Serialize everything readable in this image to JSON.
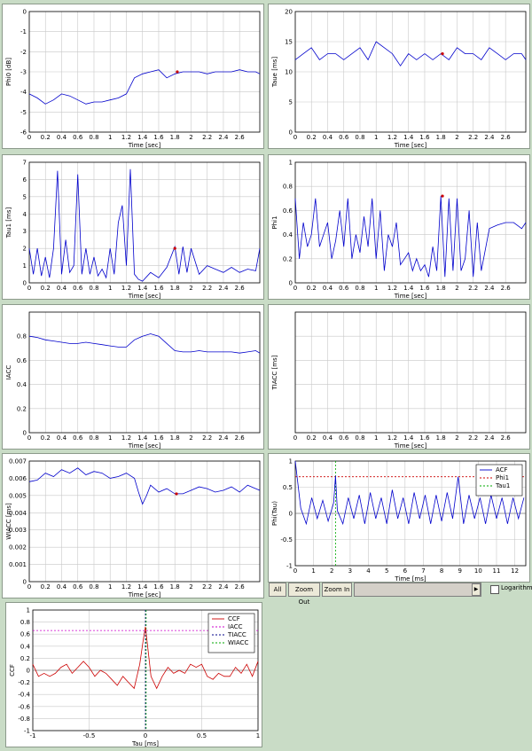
{
  "toolbar": {
    "all_label": "All",
    "zoom_out_label": "Zoom Out",
    "zoom_in_label": "Zoom In",
    "scroll_right_glyph": "▶",
    "logarithm_label": "Logarithm",
    "logarithm_checked": false
  },
  "chart_data": [
    {
      "id": "phi0",
      "type": "line",
      "xlabel": "Time [sec]",
      "ylabel": "Phi0 [dB]",
      "xlim": [
        0,
        2.85
      ],
      "ylim": [
        -6,
        0
      ],
      "xticks": [
        0,
        0.2,
        0.4,
        0.6,
        0.8,
        1,
        1.2,
        1.4,
        1.6,
        1.8,
        2,
        2.2,
        2.4,
        2.6
      ],
      "xtick_labels": [
        "0",
        "0.2",
        "0.4",
        "0.6",
        "0.8",
        "1",
        "1.2",
        "1.4",
        "1.6",
        "1.8",
        "2",
        "2.2",
        "2.4",
        "2.6"
      ],
      "yticks": [
        -6,
        -5,
        -4,
        -3,
        -2,
        -1,
        0
      ],
      "ytick_labels": [
        "-6",
        "-5",
        "-4",
        "-3",
        "-2",
        "-1",
        "0"
      ],
      "grid": true,
      "color": "#0000cc",
      "x": [
        0,
        0.1,
        0.2,
        0.3,
        0.4,
        0.5,
        0.6,
        0.7,
        0.8,
        0.9,
        1.0,
        1.1,
        1.2,
        1.3,
        1.4,
        1.5,
        1.6,
        1.7,
        1.8,
        1.9,
        2.0,
        2.1,
        2.2,
        2.3,
        2.4,
        2.5,
        2.6,
        2.7,
        2.8,
        2.85
      ],
      "y": [
        -4.1,
        -4.3,
        -4.6,
        -4.4,
        -4.1,
        -4.2,
        -4.4,
        -4.6,
        -4.5,
        -4.5,
        -4.4,
        -4.3,
        -4.1,
        -3.3,
        -3.1,
        -3.0,
        -2.9,
        -3.3,
        -3.1,
        -3.0,
        -3.0,
        -3.0,
        -3.1,
        -3.0,
        -3.0,
        -3.0,
        -2.9,
        -3.0,
        -3.0,
        -3.1
      ],
      "markers": [
        {
          "x": 1.83,
          "y": -3.0
        }
      ]
    },
    {
      "id": "taue",
      "type": "line",
      "xlabel": "Time [sec]",
      "ylabel": "Taue [ms]",
      "xlim": [
        0,
        2.85
      ],
      "ylim": [
        0,
        20
      ],
      "xticks": [
        0,
        0.2,
        0.4,
        0.6,
        0.8,
        1,
        1.2,
        1.4,
        1.6,
        1.8,
        2,
        2.2,
        2.4,
        2.6
      ],
      "xtick_labels": [
        "0",
        "0.2",
        "0.4",
        "0.6",
        "0.8",
        "1",
        "1.2",
        "1.4",
        "1.6",
        "1.8",
        "2",
        "2.2",
        "2.4",
        "2.6"
      ],
      "yticks": [
        0,
        5,
        10,
        15,
        20
      ],
      "ytick_labels": [
        "0",
        "5",
        "10",
        "15",
        "20"
      ],
      "grid": true,
      "color": "#0000cc",
      "x": [
        0,
        0.1,
        0.2,
        0.3,
        0.4,
        0.5,
        0.6,
        0.7,
        0.8,
        0.9,
        1.0,
        1.1,
        1.2,
        1.3,
        1.4,
        1.5,
        1.6,
        1.7,
        1.8,
        1.9,
        2.0,
        2.1,
        2.2,
        2.3,
        2.4,
        2.5,
        2.6,
        2.7,
        2.8,
        2.85
      ],
      "y": [
        12,
        13,
        14,
        12,
        13,
        13,
        12,
        13,
        14,
        12,
        15,
        14,
        13,
        11,
        13,
        12,
        13,
        12,
        13,
        12,
        14,
        13,
        13,
        12,
        14,
        13,
        12,
        13,
        13,
        12
      ],
      "markers": [
        {
          "x": 1.82,
          "y": 13.0
        }
      ]
    },
    {
      "id": "tau1",
      "type": "line",
      "xlabel": "Time [sec]",
      "ylabel": "Tau1 [ms]",
      "xlim": [
        0,
        2.85
      ],
      "ylim": [
        0,
        7
      ],
      "xticks": [
        0,
        0.2,
        0.4,
        0.6,
        0.8,
        1,
        1.2,
        1.4,
        1.6,
        1.8,
        2,
        2.2,
        2.4,
        2.6
      ],
      "xtick_labels": [
        "0",
        "0.2",
        "0.4",
        "0.6",
        "0.8",
        "1",
        "1.2",
        "1.4",
        "1.6",
        "1.8",
        "2",
        "2.2",
        "2.4",
        "2.6"
      ],
      "yticks": [
        0,
        1,
        2,
        3,
        4,
        5,
        6,
        7
      ],
      "ytick_labels": [
        "0",
        "1",
        "2",
        "3",
        "4",
        "5",
        "6",
        "7"
      ],
      "grid": true,
      "color": "#0000cc",
      "x": [
        0,
        0.05,
        0.1,
        0.15,
        0.2,
        0.25,
        0.3,
        0.35,
        0.4,
        0.45,
        0.5,
        0.55,
        0.6,
        0.65,
        0.7,
        0.75,
        0.8,
        0.85,
        0.9,
        0.95,
        1.0,
        1.05,
        1.1,
        1.15,
        1.2,
        1.25,
        1.3,
        1.35,
        1.4,
        1.5,
        1.6,
        1.7,
        1.8,
        1.85,
        1.9,
        1.95,
        2.0,
        2.1,
        2.2,
        2.3,
        2.4,
        2.5,
        2.6,
        2.7,
        2.8,
        2.85
      ],
      "y": [
        2,
        0.5,
        2,
        0.4,
        1.5,
        0.3,
        2,
        6.5,
        0.5,
        2.5,
        0.6,
        1,
        6.3,
        0.5,
        2,
        0.5,
        1.5,
        0.4,
        0.8,
        0.3,
        2,
        0.5,
        3.5,
        4.5,
        1,
        6.6,
        0.5,
        0.2,
        0.1,
        0.6,
        0.3,
        0.9,
        2.1,
        0.5,
        2.1,
        0.6,
        2.0,
        0.5,
        1.0,
        0.8,
        0.6,
        0.9,
        0.6,
        0.8,
        0.7,
        2.0
      ],
      "markers": [
        {
          "x": 1.8,
          "y": 2.0
        }
      ]
    },
    {
      "id": "phi1",
      "type": "line",
      "xlabel": "Time [sec]",
      "ylabel": "Phi1",
      "xlim": [
        0,
        2.85
      ],
      "ylim": [
        0,
        1
      ],
      "xticks": [
        0,
        0.2,
        0.4,
        0.6,
        0.8,
        1,
        1.2,
        1.4,
        1.6,
        1.8,
        2,
        2.2,
        2.4,
        2.6
      ],
      "xtick_labels": [
        "0",
        "0.2",
        "0.4",
        "0.6",
        "0.8",
        "1",
        "1.2",
        "1.4",
        "1.6",
        "1.8",
        "2",
        "2.2",
        "2.4",
        "2.6"
      ],
      "yticks": [
        0,
        0.2,
        0.4,
        0.6,
        0.8,
        1
      ],
      "ytick_labels": [
        "0",
        "0.2",
        "0.4",
        "0.6",
        "0.8",
        "1"
      ],
      "grid": true,
      "color": "#0000cc",
      "x": [
        0,
        0.05,
        0.1,
        0.15,
        0.2,
        0.25,
        0.3,
        0.35,
        0.4,
        0.45,
        0.5,
        0.55,
        0.6,
        0.65,
        0.7,
        0.75,
        0.8,
        0.85,
        0.9,
        0.95,
        1.0,
        1.05,
        1.1,
        1.15,
        1.2,
        1.25,
        1.3,
        1.35,
        1.4,
        1.45,
        1.5,
        1.55,
        1.6,
        1.65,
        1.7,
        1.75,
        1.8,
        1.85,
        1.9,
        1.95,
        2.0,
        2.05,
        2.1,
        2.15,
        2.2,
        2.25,
        2.3,
        2.4,
        2.5,
        2.6,
        2.7,
        2.8,
        2.85
      ],
      "y": [
        0.7,
        0.2,
        0.5,
        0.3,
        0.4,
        0.7,
        0.3,
        0.4,
        0.5,
        0.2,
        0.35,
        0.6,
        0.3,
        0.7,
        0.2,
        0.4,
        0.25,
        0.55,
        0.3,
        0.7,
        0.2,
        0.6,
        0.1,
        0.4,
        0.3,
        0.5,
        0.15,
        0.2,
        0.25,
        0.1,
        0.2,
        0.1,
        0.15,
        0.05,
        0.3,
        0.1,
        0.72,
        0.05,
        0.7,
        0.1,
        0.7,
        0.1,
        0.2,
        0.6,
        0.05,
        0.5,
        0.1,
        0.45,
        0.48,
        0.5,
        0.5,
        0.45,
        0.5
      ],
      "markers": [
        {
          "x": 1.82,
          "y": 0.72
        }
      ]
    },
    {
      "id": "iacc",
      "type": "line",
      "xlabel": "Time [sec]",
      "ylabel": "IACC",
      "xlim": [
        0,
        2.85
      ],
      "ylim": [
        0,
        1
      ],
      "xticks": [
        0,
        0.2,
        0.4,
        0.6,
        0.8,
        1,
        1.2,
        1.4,
        1.6,
        1.8,
        2,
        2.2,
        2.4,
        2.6
      ],
      "xtick_labels": [
        "0",
        "0.2",
        "0.4",
        "0.6",
        "0.8",
        "1",
        "1.2",
        "1.4",
        "1.6",
        "1.8",
        "2",
        "2.2",
        "2.4",
        "2.6"
      ],
      "yticks": [
        0,
        0.2,
        0.4,
        0.6,
        0.8
      ],
      "ytick_labels": [
        "0",
        "0.2",
        "0.4",
        "0.6",
        "0.8"
      ],
      "grid": true,
      "color": "#0000cc",
      "x": [
        0,
        0.1,
        0.2,
        0.3,
        0.4,
        0.5,
        0.6,
        0.7,
        0.8,
        0.9,
        1.0,
        1.1,
        1.2,
        1.3,
        1.4,
        1.5,
        1.6,
        1.7,
        1.8,
        1.9,
        2.0,
        2.1,
        2.2,
        2.3,
        2.4,
        2.5,
        2.6,
        2.7,
        2.8,
        2.85
      ],
      "y": [
        0.8,
        0.79,
        0.77,
        0.76,
        0.75,
        0.74,
        0.74,
        0.75,
        0.74,
        0.73,
        0.72,
        0.71,
        0.71,
        0.77,
        0.8,
        0.82,
        0.8,
        0.74,
        0.68,
        0.67,
        0.67,
        0.68,
        0.67,
        0.67,
        0.67,
        0.67,
        0.66,
        0.67,
        0.68,
        0.66
      ],
      "markers": []
    },
    {
      "id": "tiacc",
      "type": "line",
      "xlabel": "Time [sec]",
      "ylabel": "TIACC [ms]",
      "xlim": [
        0,
        2.85
      ],
      "ylim": [
        0,
        1
      ],
      "xticks": [
        0,
        0.2,
        0.4,
        0.6,
        0.8,
        1,
        1.2,
        1.4,
        1.6,
        1.8,
        2,
        2.2,
        2.4,
        2.6
      ],
      "xtick_labels": [
        "0",
        "0.2",
        "0.4",
        "0.6",
        "0.8",
        "1",
        "1.2",
        "1.4",
        "1.6",
        "1.8",
        "2",
        "2.2",
        "2.4",
        "2.6"
      ],
      "yticks": [],
      "ytick_labels": [],
      "grid": true,
      "color": "#0000cc",
      "x": [],
      "y": [],
      "markers": []
    },
    {
      "id": "wiacc",
      "type": "line",
      "xlabel": "Time [sec]",
      "ylabel": "WIACC [ms]",
      "xlim": [
        0,
        2.85
      ],
      "ylim": [
        0,
        0.007
      ],
      "xticks": [
        0,
        0.2,
        0.4,
        0.6,
        0.8,
        1,
        1.2,
        1.4,
        1.6,
        1.8,
        2,
        2.2,
        2.4,
        2.6
      ],
      "xtick_labels": [
        "0",
        "0.2",
        "0.4",
        "0.6",
        "0.8",
        "1",
        "1.2",
        "1.4",
        "1.6",
        "1.8",
        "2",
        "2.2",
        "2.4",
        "2.6"
      ],
      "yticks": [
        0,
        0.001,
        0.002,
        0.003,
        0.004,
        0.005,
        0.006,
        0.007
      ],
      "ytick_labels": [
        "0",
        "0.001",
        "0.002",
        "0.003",
        "0.004",
        "0.005",
        "0.006",
        "0.007"
      ],
      "grid": true,
      "color": "#0000cc",
      "x": [
        0,
        0.1,
        0.2,
        0.3,
        0.4,
        0.5,
        0.6,
        0.7,
        0.8,
        0.9,
        1.0,
        1.1,
        1.2,
        1.3,
        1.35,
        1.4,
        1.45,
        1.5,
        1.6,
        1.7,
        1.8,
        1.9,
        2.0,
        2.1,
        2.2,
        2.3,
        2.4,
        2.5,
        2.6,
        2.7,
        2.8,
        2.85
      ],
      "y": [
        0.0058,
        0.0059,
        0.0063,
        0.0061,
        0.0065,
        0.0063,
        0.0066,
        0.0062,
        0.0064,
        0.0063,
        0.006,
        0.0061,
        0.0063,
        0.006,
        0.0052,
        0.0045,
        0.005,
        0.0056,
        0.0052,
        0.0054,
        0.0051,
        0.0051,
        0.0053,
        0.0055,
        0.0054,
        0.0052,
        0.0053,
        0.0055,
        0.0052,
        0.0056,
        0.0054,
        0.0053
      ],
      "markers": [
        {
          "x": 1.82,
          "y": 0.0051
        }
      ]
    },
    {
      "id": "acf",
      "type": "line",
      "xlabel": "Time [ms]",
      "ylabel": "Phi(Tau)",
      "xlim": [
        0,
        12.6
      ],
      "ylim": [
        -1,
        1
      ],
      "xticks": [
        0,
        1,
        2,
        3,
        4,
        5,
        6,
        7,
        8,
        9,
        10,
        11,
        12
      ],
      "xtick_labels": [
        "0",
        "1",
        "2",
        "3",
        "4",
        "5",
        "6",
        "7",
        "8",
        "9",
        "10",
        "11",
        "12"
      ],
      "yticks": [
        -1,
        -0.5,
        0,
        0.5,
        1
      ],
      "ytick_labels": [
        "-1",
        "-0.5",
        "0",
        "0.5",
        "1"
      ],
      "grid": true,
      "legend": [
        "ACF",
        "Phi1",
        "Tau1"
      ],
      "legend_colors": [
        "#0000cc",
        "#cc0000",
        "#00aa00"
      ],
      "series": [
        {
          "name": "ACF",
          "x": [
            0,
            0.3,
            0.6,
            0.9,
            1.2,
            1.5,
            1.8,
            2.1,
            2.2,
            2.3,
            2.6,
            2.9,
            3.2,
            3.5,
            3.8,
            4.1,
            4.4,
            4.7,
            5.0,
            5.3,
            5.6,
            5.9,
            6.2,
            6.5,
            6.8,
            7.1,
            7.4,
            7.7,
            8.0,
            8.3,
            8.6,
            8.9,
            9.2,
            9.5,
            9.8,
            10.1,
            10.4,
            10.7,
            11.0,
            11.3,
            11.6,
            11.9,
            12.2,
            12.5
          ],
          "y": [
            1.0,
            0.1,
            -0.2,
            0.3,
            -0.1,
            0.25,
            -0.15,
            0.2,
            0.72,
            0.05,
            -0.2,
            0.3,
            -0.1,
            0.35,
            -0.2,
            0.4,
            -0.1,
            0.3,
            -0.2,
            0.45,
            -0.1,
            0.3,
            -0.2,
            0.4,
            -0.1,
            0.35,
            -0.2,
            0.35,
            -0.15,
            0.4,
            -0.1,
            0.7,
            -0.2,
            0.35,
            -0.1,
            0.3,
            -0.2,
            0.35,
            -0.1,
            0.3,
            -0.2,
            0.3,
            -0.1,
            0.3
          ]
        }
      ],
      "phi1_level": 0.7,
      "tau1_at": 2.2
    },
    {
      "id": "ccf",
      "type": "line",
      "xlabel": "Tau [ms]",
      "ylabel": "CCF",
      "xlim": [
        -1,
        1
      ],
      "ylim": [
        -1,
        1
      ],
      "xticks": [
        -1,
        -0.5,
        0,
        0.5,
        1
      ],
      "xtick_labels": [
        "-1",
        "-0.5",
        "0",
        "0.5",
        "1"
      ],
      "yticks": [
        -1,
        -0.8,
        -0.6,
        -0.4,
        -0.2,
        0,
        0.2,
        0.4,
        0.6,
        0.8,
        1
      ],
      "ytick_labels": [
        "-1",
        "-0.8",
        "-0.6",
        "-0.4",
        "-0.2",
        "0",
        "0.2",
        "0.4",
        "0.6",
        "0.8",
        "1"
      ],
      "grid": true,
      "legend": [
        "CCF",
        "IACC",
        "TIACC",
        "WIACC"
      ],
      "legend_colors": [
        "#cc0000",
        "#cc00cc",
        "#000088",
        "#00aa00"
      ],
      "series": [
        {
          "name": "CCF",
          "x": [
            -1,
            -0.95,
            -0.9,
            -0.85,
            -0.8,
            -0.75,
            -0.7,
            -0.65,
            -0.6,
            -0.55,
            -0.5,
            -0.45,
            -0.4,
            -0.35,
            -0.3,
            -0.25,
            -0.2,
            -0.15,
            -0.1,
            -0.05,
            -0.02,
            0,
            0.02,
            0.05,
            0.1,
            0.15,
            0.2,
            0.25,
            0.3,
            0.35,
            0.4,
            0.45,
            0.5,
            0.55,
            0.6,
            0.65,
            0.7,
            0.75,
            0.8,
            0.85,
            0.9,
            0.95,
            1
          ],
          "y": [
            0.1,
            -0.1,
            -0.05,
            -0.1,
            -0.05,
            0.05,
            0.1,
            -0.05,
            0.05,
            0.15,
            0.05,
            -0.1,
            0.0,
            -0.05,
            -0.15,
            -0.25,
            -0.1,
            -0.2,
            -0.3,
            0.1,
            0.5,
            0.72,
            0.4,
            -0.1,
            -0.3,
            -0.1,
            0.05,
            -0.05,
            0.0,
            -0.05,
            0.1,
            0.05,
            0.1,
            -0.1,
            -0.15,
            -0.05,
            -0.1,
            -0.1,
            0.05,
            -0.05,
            0.1,
            -0.1,
            0.15
          ]
        }
      ],
      "iacc_level": 0.66,
      "tiacc_at": 0,
      "wiacc_at": 0
    }
  ]
}
